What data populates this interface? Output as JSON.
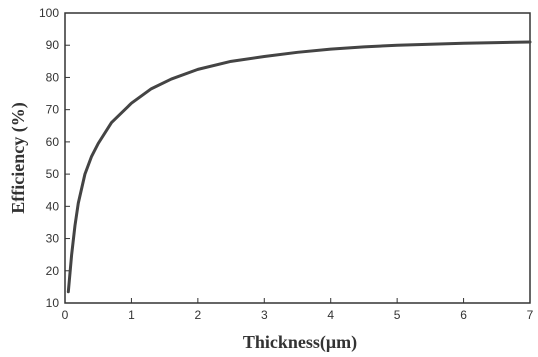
{
  "chart_data": {
    "type": "line",
    "title": "",
    "xlabel": "Thickness(μm)",
    "ylabel": "Efficiency (%)",
    "xlim": [
      0,
      7
    ],
    "ylim": [
      10,
      100
    ],
    "xticks": [
      "0",
      "1",
      "2",
      "3",
      "4",
      "5",
      "6",
      "7"
    ],
    "yticks": [
      "10",
      "20",
      "30",
      "40",
      "50",
      "60",
      "70",
      "80",
      "90",
      "100"
    ],
    "grid": false,
    "legend": "none",
    "line_color": "#444444",
    "series": [
      {
        "x": [
          0.05,
          0.1,
          0.15,
          0.2,
          0.3,
          0.4,
          0.5,
          0.7,
          1.0,
          1.3,
          1.6,
          2.0,
          2.5,
          3.0,
          3.5,
          4.0,
          4.5,
          5.0,
          5.5,
          6.0,
          6.5,
          7.0
        ],
        "values": [
          13.5,
          25,
          34,
          41,
          50,
          55.5,
          59.5,
          66,
          72,
          76.5,
          79.5,
          82.5,
          85,
          86.5,
          87.8,
          88.8,
          89.5,
          90.0,
          90.3,
          90.6,
          90.8,
          91.0
        ]
      }
    ]
  }
}
